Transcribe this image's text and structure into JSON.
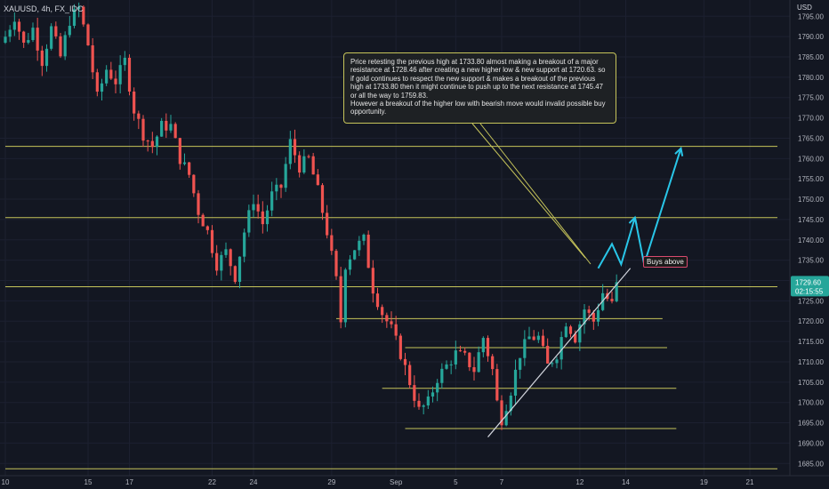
{
  "header": {
    "symbol": "XAUUSD, 4h, FX_IDC"
  },
  "annotation": {
    "text": "Price retesting the previous high at 1733.80 almost making a breakout of a major resistance at 1728.46 after creating a new higher low & new support at 1720.63. so if gold continues to respect the new support & makes a breakout of the previous high at 1733.80 then it might continue to push up to the next resistance at 1745.47 or all the way to 1759.83.\nHowever a breakout of the higher low with bearish move would invalid possible buy opportunity.",
    "buys_label": "Buys above"
  },
  "price_tag": {
    "price": "1729.60",
    "countdown": "02:15:55"
  },
  "colors": {
    "background": "#131722",
    "up": "#26a69a",
    "down": "#ef5350",
    "level_line": "#c6c45a",
    "projection": "#29c6e8",
    "trendline": "#d1d4dc"
  },
  "chart_data": {
    "type": "candlestick",
    "title": "XAUUSD, 4h, FX_IDC",
    "currency": "USD",
    "y_ticks": [
      1685,
      1690,
      1695,
      1700,
      1705,
      1710,
      1715,
      1720,
      1725,
      1730,
      1735,
      1740,
      1745,
      1750,
      1755,
      1760,
      1765,
      1770,
      1775,
      1780,
      1785,
      1790,
      1795
    ],
    "y_tick_labels": [
      "1685.00",
      "1690.00",
      "1695.00",
      "1700.00",
      "1705.00",
      "1710.00",
      "1715.00",
      "1720.00",
      "1725.00",
      "1730.00",
      "1735.00",
      "1740.00",
      "1745.00",
      "1750.00",
      "1755.00",
      "1760.00",
      "1765.00",
      "1770.00",
      "1775.00",
      "1780.00",
      "1785.00",
      "1790.00",
      "1795.00"
    ],
    "ylim": [
      1682,
      1799
    ],
    "x_ticks": [
      {
        "label": "10",
        "bar": 0
      },
      {
        "label": "15",
        "bar": 18
      },
      {
        "label": "17",
        "bar": 27
      },
      {
        "label": "22",
        "bar": 45
      },
      {
        "label": "24",
        "bar": 54
      },
      {
        "label": "29",
        "bar": 71
      },
      {
        "label": "Sep",
        "bar": 85
      },
      {
        "label": "5",
        "bar": 98
      },
      {
        "label": "7",
        "bar": 108
      },
      {
        "label": "12",
        "bar": 125
      },
      {
        "label": "14",
        "bar": 135
      },
      {
        "label": "19",
        "bar": 152
      },
      {
        "label": "21",
        "bar": 162
      }
    ],
    "anchors": [
      [
        0,
        1790
      ],
      [
        2,
        1795
      ],
      [
        4,
        1788
      ],
      [
        6,
        1792
      ],
      [
        8,
        1784
      ],
      [
        10,
        1792
      ],
      [
        12,
        1785
      ],
      [
        14,
        1794
      ],
      [
        16,
        1797
      ],
      [
        18,
        1788
      ],
      [
        20,
        1775
      ],
      [
        22,
        1782
      ],
      [
        24,
        1779
      ],
      [
        26,
        1784
      ],
      [
        28,
        1772
      ],
      [
        30,
        1766
      ],
      [
        32,
        1763
      ],
      [
        34,
        1768
      ],
      [
        36,
        1768
      ],
      [
        38,
        1760
      ],
      [
        40,
        1756
      ],
      [
        42,
        1747
      ],
      [
        44,
        1742
      ],
      [
        46,
        1734
      ],
      [
        48,
        1737
      ],
      [
        50,
        1731
      ],
      [
        52,
        1742
      ],
      [
        54,
        1750
      ],
      [
        56,
        1744
      ],
      [
        58,
        1751
      ],
      [
        60,
        1753
      ],
      [
        62,
        1764
      ],
      [
        64,
        1758
      ],
      [
        66,
        1760
      ],
      [
        68,
        1752
      ],
      [
        70,
        1742
      ],
      [
        72,
        1730
      ],
      [
        73,
        1720
      ],
      [
        74,
        1734
      ],
      [
        76,
        1738
      ],
      [
        78,
        1740
      ],
      [
        80,
        1728
      ],
      [
        82,
        1722
      ],
      [
        84,
        1718
      ],
      [
        86,
        1712
      ],
      [
        88,
        1705
      ],
      [
        90,
        1698
      ],
      [
        92,
        1700
      ],
      [
        94,
        1706
      ],
      [
        96,
        1709
      ],
      [
        98,
        1712
      ],
      [
        100,
        1711
      ],
      [
        102,
        1708
      ],
      [
        104,
        1716
      ],
      [
        106,
        1708
      ],
      [
        107,
        1700
      ],
      [
        108,
        1696
      ],
      [
        110,
        1703
      ],
      [
        112,
        1712
      ],
      [
        114,
        1716
      ],
      [
        116,
        1716
      ],
      [
        118,
        1709
      ],
      [
        120,
        1712
      ],
      [
        122,
        1720
      ],
      [
        124,
        1716
      ],
      [
        126,
        1723
      ],
      [
        128,
        1720
      ],
      [
        130,
        1727
      ],
      [
        132,
        1724
      ],
      [
        133,
        1729.6
      ]
    ],
    "bar_count": 134,
    "x_bar_range": [
      0,
      168
    ],
    "horizontal_levels": [
      {
        "price": 1763.0,
        "from_bar": 0,
        "to_bar": 168
      },
      {
        "price": 1745.47,
        "from_bar": 0,
        "to_bar": 168
      },
      {
        "price": 1728.46,
        "from_bar": 0,
        "to_bar": 168
      },
      {
        "price": 1720.63,
        "from_bar": 72,
        "to_bar": 143
      },
      {
        "price": 1713.5,
        "from_bar": 87,
        "to_bar": 144
      },
      {
        "price": 1703.5,
        "from_bar": 82,
        "to_bar": 146
      },
      {
        "price": 1693.6,
        "from_bar": 87,
        "to_bar": 146
      },
      {
        "price": 1683.7,
        "from_bar": 0,
        "to_bar": 168
      }
    ],
    "trendline": {
      "from": [
        105,
        1691.5
      ],
      "to": [
        136,
        1733
      ]
    },
    "projection": [
      [
        129,
        1733
      ],
      [
        132,
        1739
      ],
      [
        134,
        1734
      ],
      [
        137,
        1745.5
      ],
      [
        139,
        1734
      ],
      [
        147,
        1762.5
      ]
    ],
    "last_price": 1729.6
  }
}
